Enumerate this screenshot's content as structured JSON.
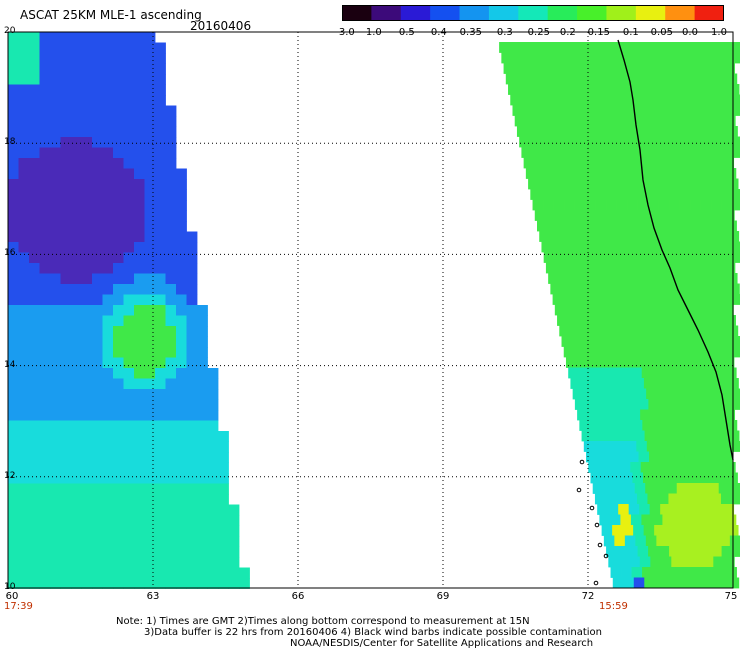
{
  "header": {
    "title": "ASCAT 25KM MLE-1 ascending",
    "date": "20160406"
  },
  "colorbar": {
    "labels": [
      "-3.0",
      "-1.0",
      "-0.5",
      "-0.4",
      "-0.35",
      "-0.3",
      "-0.25",
      "-0.2",
      "-0.15",
      "-0.1",
      "-0.05",
      "0.0",
      "1.0"
    ],
    "colors": [
      "#1a0010",
      "#3c0a7a",
      "#2a1ad6",
      "#1450f0",
      "#1494f0",
      "#14c8e8",
      "#14e8b8",
      "#28ec5a",
      "#48f02a",
      "#a0f01a",
      "#e8f010",
      "#ff9010",
      "#f02010"
    ]
  },
  "map": {
    "lat_labels": [
      "20",
      "18",
      "16",
      "14",
      "12",
      "10"
    ],
    "lon_labels": [
      "60",
      "63",
      "66",
      "69",
      "72",
      "75"
    ],
    "pass_times": [
      "17:39",
      "15:59"
    ],
    "colors": {
      "deep": "#4a2ab8",
      "blue": "#2450ec",
      "sky": "#1a9cf0",
      "cyan": "#18dcdc",
      "teal": "#18e8b0",
      "green": "#40e848",
      "lime": "#a8f020",
      "yellow": "#e8f010",
      "coast": "#000000"
    }
  },
  "notes": {
    "line1": "Note: 1) Times are GMT 2)Times along bottom correspond to measurement at 15N",
    "line2": "3)Data buffer is 22 hrs from 20160406 4) Black wind barbs indicate possible contamination",
    "line3": "NOAA/NESDIS/Center for Satellite Applications and Research"
  }
}
